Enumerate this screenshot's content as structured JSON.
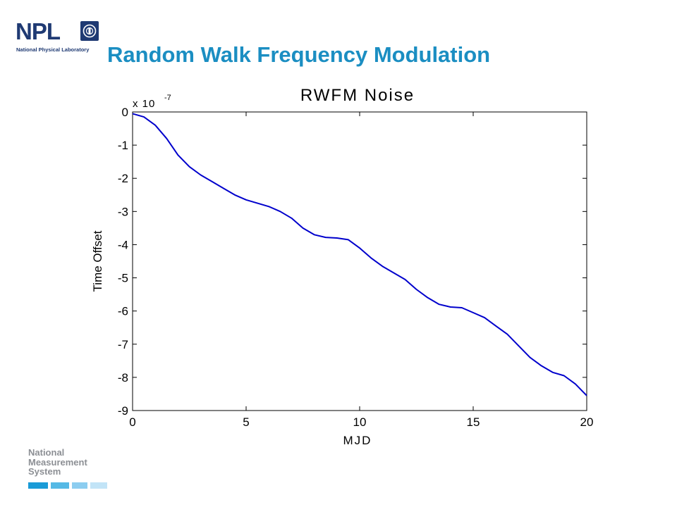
{
  "header": {
    "logo_text": "NPL",
    "logo_subtitle": "National Physical Laboratory",
    "slide_title": "Random Walk Frequency Modulation"
  },
  "footer": {
    "nms_text": "National\nMeasurement\nSystem"
  },
  "colors": {
    "title": "#1b8ec2",
    "npl_navy": "#1f3a73",
    "line": "#0000cc"
  },
  "chart_data": {
    "type": "line",
    "title": "RWFM Noise",
    "xlabel": "MJD",
    "ylabel": "Time Offset",
    "y_multiplier_label": "x 10",
    "y_multiplier_exponent": "-7",
    "xlim": [
      0,
      20
    ],
    "ylim": [
      -9,
      0
    ],
    "xticks": [
      0,
      5,
      10,
      15,
      20
    ],
    "yticks": [
      0,
      -1,
      -2,
      -3,
      -4,
      -5,
      -6,
      -7,
      -8,
      -9
    ],
    "grid": false,
    "series": [
      {
        "x": [
          0,
          0.5,
          1,
          1.5,
          2,
          2.5,
          3,
          3.5,
          4,
          4.5,
          5,
          5.5,
          6,
          6.5,
          7,
          7.5,
          8,
          8.5,
          9,
          9.5,
          10,
          10.5,
          11,
          11.5,
          12,
          12.5,
          13,
          13.5,
          14,
          14.5,
          15,
          15.5,
          16,
          16.5,
          17,
          17.5,
          18,
          18.5,
          19,
          19.5,
          20
        ],
        "y": [
          -0.05,
          -0.15,
          -0.4,
          -0.8,
          -1.3,
          -1.65,
          -1.9,
          -2.1,
          -2.3,
          -2.5,
          -2.65,
          -2.75,
          -2.85,
          -3.0,
          -3.2,
          -3.5,
          -3.7,
          -3.78,
          -3.8,
          -3.85,
          -4.1,
          -4.4,
          -4.65,
          -4.85,
          -5.05,
          -5.35,
          -5.6,
          -5.8,
          -5.88,
          -5.9,
          -6.05,
          -6.2,
          -6.45,
          -6.7,
          -7.05,
          -7.4,
          -7.65,
          -7.85,
          -7.95,
          -8.2,
          -8.55
        ]
      }
    ]
  }
}
